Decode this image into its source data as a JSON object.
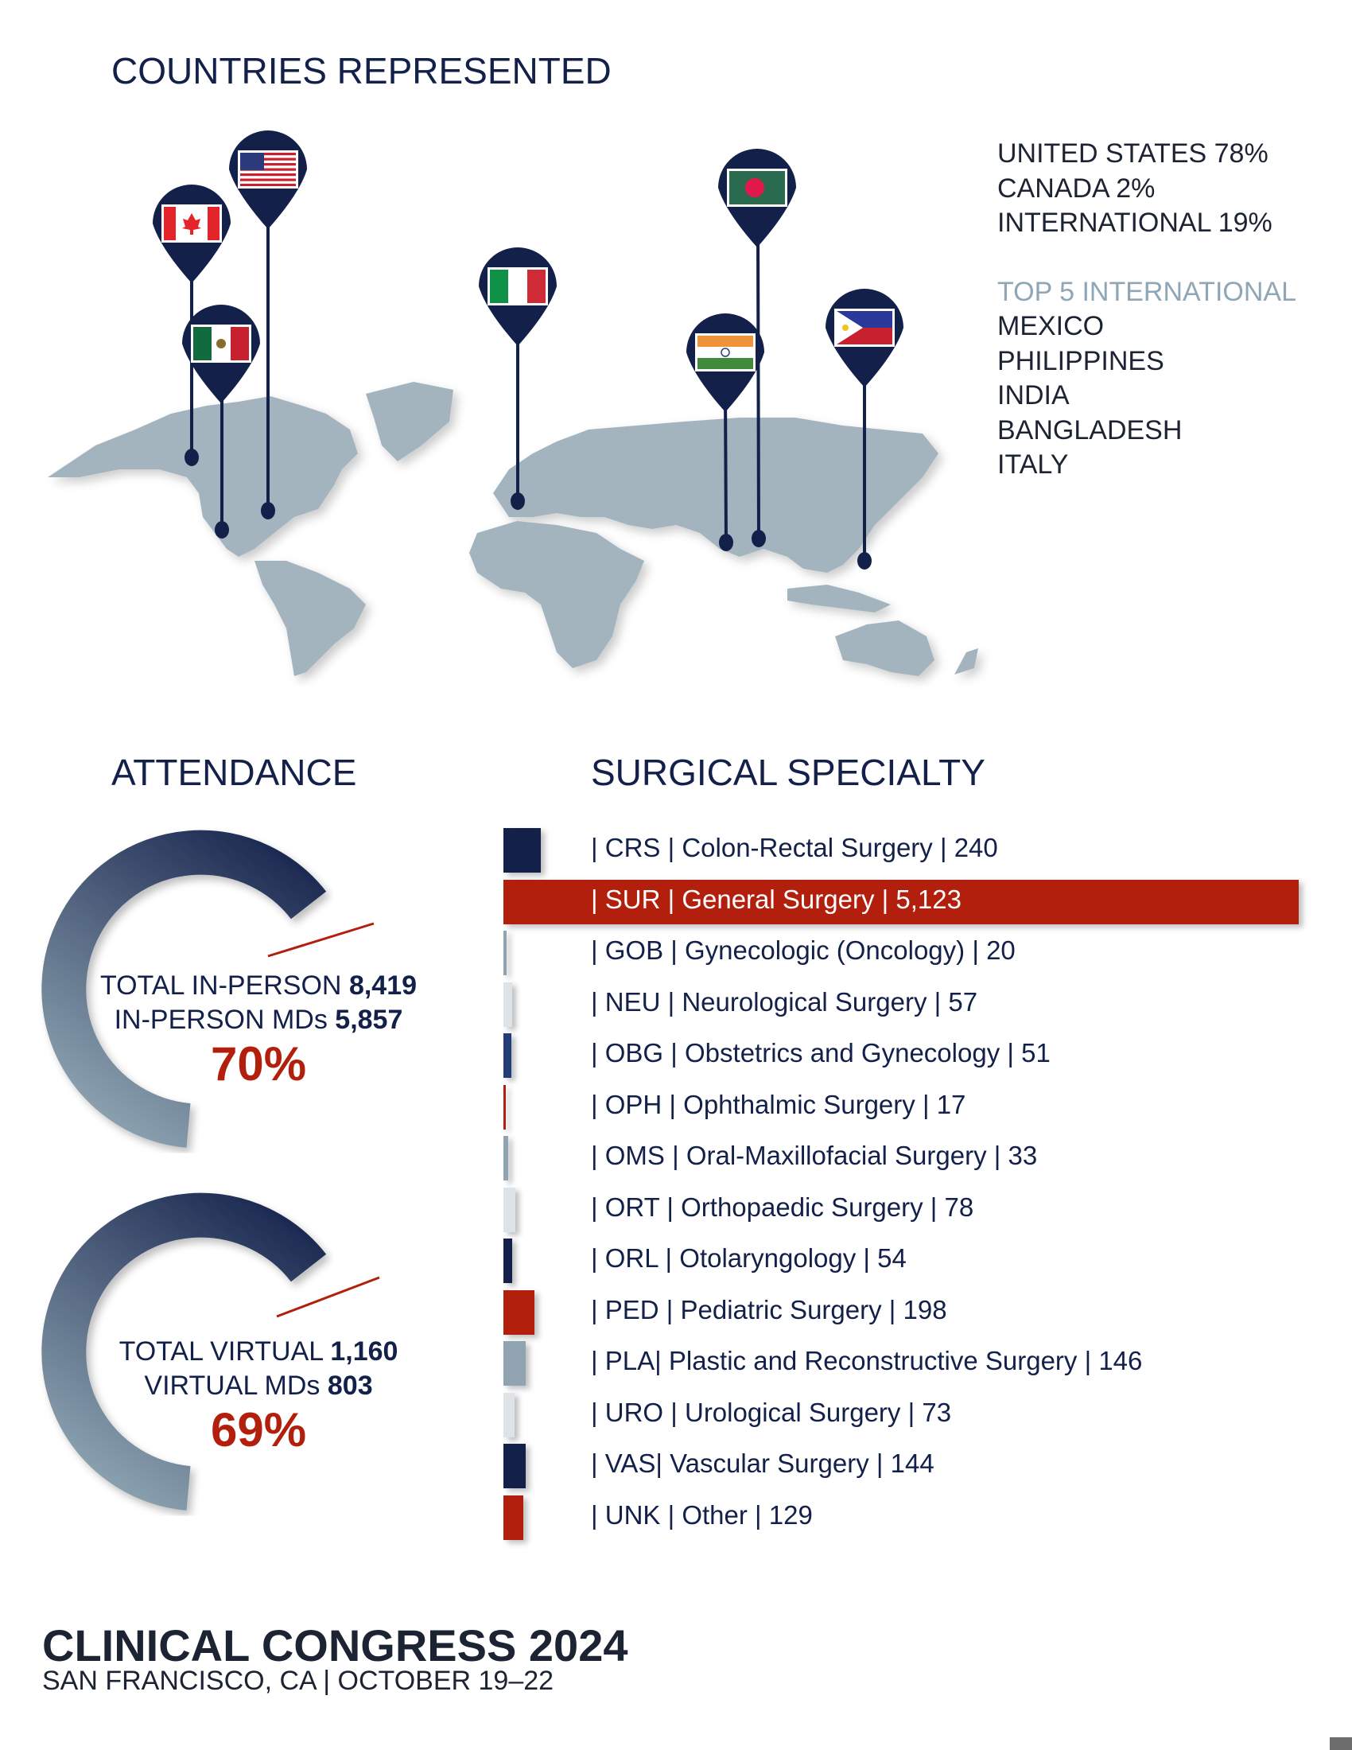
{
  "countries": {
    "title": "COUNTRIES REPRESENTED",
    "breakdown": [
      "UNITED STATES 78%",
      "CANADA 2%",
      "INTERNATIONAL 19%"
    ],
    "top_title": "TOP 5 INTERNATIONAL",
    "top_list": [
      "MEXICO",
      "PHILIPPINES",
      "INDIA",
      "BANGLADESH",
      "ITALY"
    ],
    "pins": [
      "canada-flag-icon",
      "united-states-flag-icon",
      "mexico-flag-icon",
      "italy-flag-icon",
      "bangladesh-flag-icon",
      "india-flag-icon",
      "philippines-flag-icon"
    ]
  },
  "attendance": {
    "title": "ATTENDANCE",
    "in_person": {
      "label1": "TOTAL IN-PERSON ",
      "value1": "8,419",
      "label2": "IN-PERSON MDs ",
      "value2": "5,857",
      "pct": "70%",
      "fraction": 0.7
    },
    "virtual": {
      "label1": "TOTAL VIRTUAL ",
      "value1": "1,160",
      "label2": "VIRTUAL MDs ",
      "value2": "803",
      "pct": "69%",
      "fraction": 0.69
    }
  },
  "specialty": {
    "title": "SURGICAL SPECIALTY",
    "max": 5123,
    "rows": [
      {
        "label": "| CRS   | Colon-Rectal Surgery | 240",
        "value": 240,
        "color": "#13204a"
      },
      {
        "label": "| SUR   | General Surgery | 5,123",
        "value": 5123,
        "color": "#b21f0c",
        "highlight": true
      },
      {
        "label": "| GOB  | Gynecologic (Oncology) | 20",
        "value": 20,
        "color": "#8fa3b0"
      },
      {
        "label": "| NEU  | Neurological Surgery | 57",
        "value": 57,
        "color": "#dde3e6"
      },
      {
        "label": "| OBG  | Obstetrics and Gynecology | 51",
        "value": 51,
        "color": "#223d7a"
      },
      {
        "label": "| OPH  | Ophthalmic Surgery | 17",
        "value": 17,
        "color": "#b21f0c"
      },
      {
        "label": "| OMS | Oral-Maxillofacial Surgery | 33",
        "value": 33,
        "color": "#8fa3b0"
      },
      {
        "label": "| ORT   | Orthopaedic Surgery | 78",
        "value": 78,
        "color": "#dde3e6"
      },
      {
        "label": "| ORL   | Otolaryngology | 54",
        "value": 54,
        "color": "#13204a"
      },
      {
        "label": "| PED   | Pediatric Surgery | 198",
        "value": 198,
        "color": "#b21f0c"
      },
      {
        "label": "| PLA| Plastic and Reconstructive Surgery | 146",
        "value": 146,
        "color": "#8fa3b0"
      },
      {
        "label": "| URO  | Urological Surgery | 73",
        "value": 73,
        "color": "#dde3e6"
      },
      {
        "label": "| VAS| Vascular Surgery | 144",
        "value": 144,
        "color": "#13204a"
      },
      {
        "label": "| UNK  | Other | 129",
        "value": 129,
        "color": "#b21f0c"
      }
    ]
  },
  "footer": {
    "title": "CLINICAL CONGRESS 2024",
    "subtitle": "SAN FRANCISCO, CA | OCTOBER 19–22"
  },
  "colors": {
    "navy": "#13204a",
    "red": "#b21f0c",
    "map": "#a3b4bf"
  }
}
